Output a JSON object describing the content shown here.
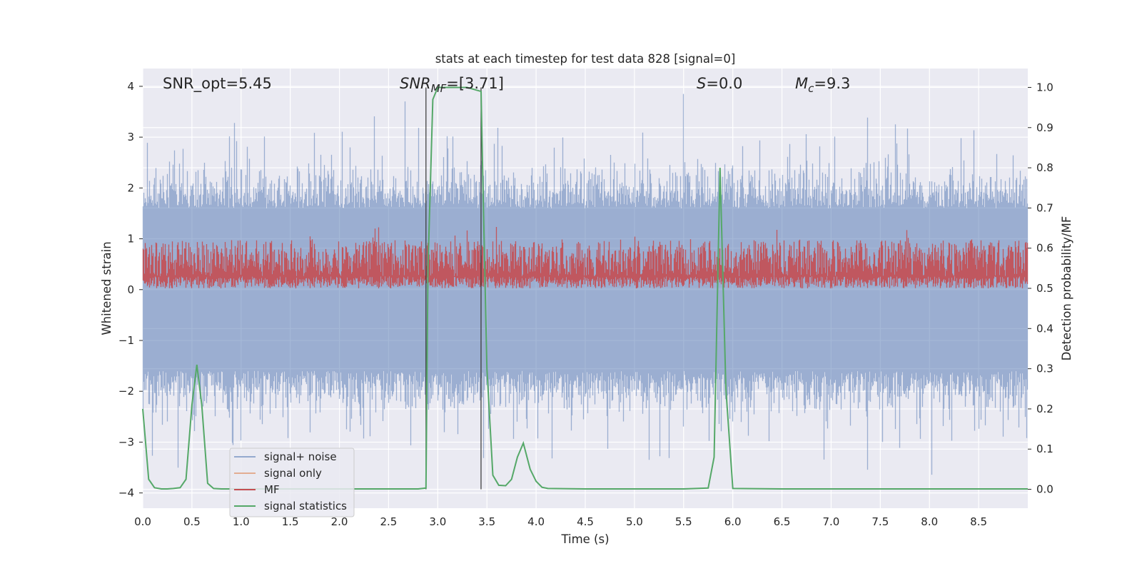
{
  "chart_data": {
    "type": "line",
    "title": "stats at each timestep for test data 828 [signal=0]",
    "xlabel": "Time (s)",
    "ylabel_left": "Whitened strain",
    "ylabel_right": "Detection probability/MF",
    "xlim": [
      0,
      9
    ],
    "ylim_left": [
      -4.3,
      4.35
    ],
    "ylim_right": [
      -0.047,
      1.047
    ],
    "x_ticks": [
      "0.0",
      "0.5",
      "1.0",
      "1.5",
      "2.0",
      "2.5",
      "3.0",
      "3.5",
      "4.0",
      "4.5",
      "5.0",
      "5.5",
      "6.0",
      "6.5",
      "7.0",
      "7.5",
      "8.0",
      "8.5"
    ],
    "y_ticks_left": [
      "4",
      "3",
      "2",
      "1",
      "0",
      "−1",
      "−2",
      "−3",
      "−4"
    ],
    "y_ticks_right": [
      "1.0",
      "0.9",
      "0.8",
      "0.7",
      "0.6",
      "0.5",
      "0.4",
      "0.3",
      "0.2",
      "0.1",
      "0.0"
    ],
    "grid": true,
    "legend_position": "lower-left",
    "annotations": {
      "snr_opt": "SNR_opt=5.45",
      "snr_mf_base": "SNR",
      "snr_mf_sub": "MF",
      "snr_mf_value": "=[3.71]",
      "s_base": "S",
      "s_value": "=0.0",
      "mc_base": "M",
      "mc_sub": "c",
      "mc_value": "=9.3"
    },
    "vlines_x": [
      2.88,
      3.44
    ],
    "series": [
      {
        "name": "signal+ noise",
        "color": "#4c72b0",
        "axis": "left",
        "style": "noise",
        "amplitude_range": [
          -3.8,
          4.0
        ]
      },
      {
        "name": "signal only",
        "color": "#dd8452",
        "axis": "left",
        "values": []
      },
      {
        "name": "MF",
        "color": "#c44e52",
        "axis": "right",
        "style": "noise",
        "range": [
          0.5,
          0.62
        ]
      },
      {
        "name": "signal statistics",
        "color": "#55a868",
        "axis": "right",
        "x": [
          0.0,
          0.06,
          0.12,
          0.19,
          0.25,
          0.31,
          0.38,
          0.44,
          0.5,
          0.55,
          0.6,
          0.66,
          0.72,
          0.8,
          1.0,
          1.5,
          2.0,
          2.5,
          2.8,
          2.88,
          2.9,
          2.95,
          3.0,
          3.1,
          3.3,
          3.44,
          3.46,
          3.5,
          3.56,
          3.62,
          3.69,
          3.75,
          3.81,
          3.87,
          3.94,
          4.0,
          4.06,
          4.12,
          4.5,
          5.0,
          5.5,
          5.75,
          5.81,
          5.87,
          5.93,
          6.0,
          6.5,
          7.0,
          8.0,
          9.0
        ],
        "y": [
          0.2,
          0.025,
          0.004,
          0.001,
          0.001,
          0.002,
          0.004,
          0.025,
          0.21,
          0.31,
          0.21,
          0.015,
          0.002,
          0.001,
          0.001,
          0.001,
          0.001,
          0.001,
          0.001,
          0.003,
          0.55,
          0.97,
          1.0,
          1.0,
          1.0,
          0.99,
          0.75,
          0.3,
          0.035,
          0.01,
          0.009,
          0.025,
          0.08,
          0.115,
          0.05,
          0.02,
          0.005,
          0.002,
          0.001,
          0.001,
          0.001,
          0.003,
          0.08,
          0.8,
          0.25,
          0.002,
          0.001,
          0.001,
          0.001,
          0.001
        ]
      }
    ]
  }
}
